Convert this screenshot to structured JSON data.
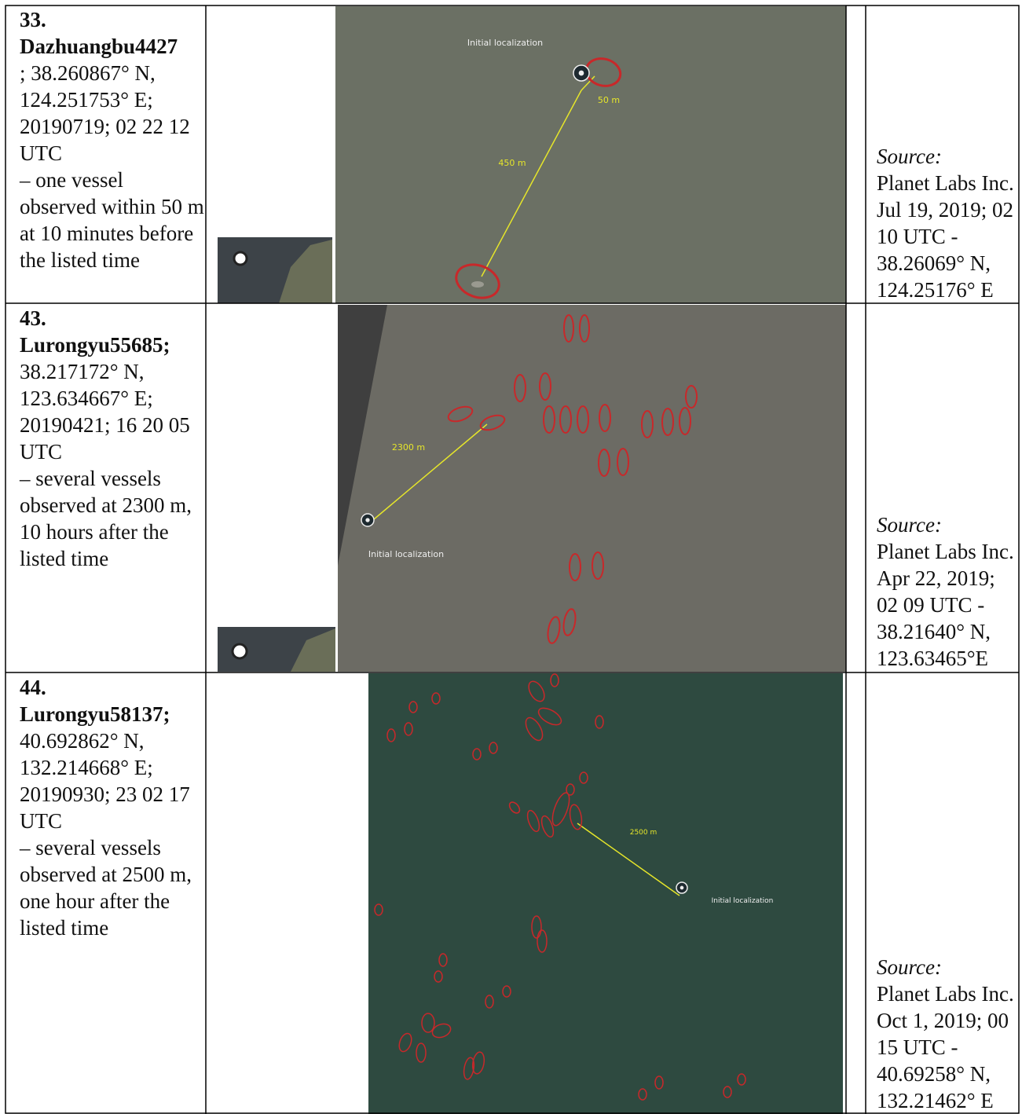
{
  "rows": [
    {
      "number": "33.",
      "name": "Dazhuangbu4427",
      "coordinates": "; 38.260867° N, 124.251753° E; 20190719; 02 22 12 UTC",
      "note": "– one vessel observed within 50 m at 10 minutes before the listed time",
      "image_labels": [
        "Initial localization",
        "450 m",
        "50 m"
      ],
      "source_label": "Source:",
      "source": "Planet Labs Inc. Jul 19, 2019; 02 10 UTC - 38.26069° N, 124.25176° E"
    },
    {
      "number": "43.",
      "name": "Lurongyu55685;",
      "coordinates": "38.217172° N, 123.634667° E; 20190421; 16 20 05 UTC",
      "note": "– several vessels observed at 2300 m, 10 hours after the listed time",
      "image_labels": [
        "Initial localization",
        "2300 m"
      ],
      "source_label": "Source:",
      "source": "Planet Labs Inc. Apr 22, 2019; 02 09 UTC - 38.21640° N, 123.63465°E"
    },
    {
      "number": "44.",
      "name": "Lurongyu58137;",
      "coordinates": "40.692862° N, 132.214668° E; 20190930; 23 02 17 UTC",
      "note": "– several vessels observed at 2500 m, one hour after the listed time",
      "image_labels": [
        "Initial localization",
        "2500 m"
      ],
      "source_label": "Source:",
      "source": "Planet Labs Inc. Oct 1, 2019; 00 15 UTC - 40.69258° N, 132.21462° E"
    }
  ]
}
